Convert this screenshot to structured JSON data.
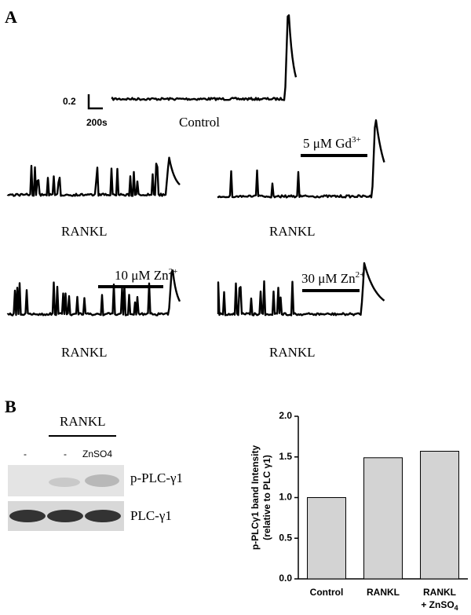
{
  "panel_a": {
    "label": "A",
    "scale_bar": {
      "amplitude": "0.2",
      "time": "200s"
    },
    "control_label": "Control",
    "trace_labels": [
      "RANKL",
      "RANKL",
      "RANKL",
      "RANKL"
    ],
    "treatments": [
      {
        "text": "5 μM Gd",
        "sup": "3+"
      },
      {
        "text": "10 μM Zn",
        "sup": "2+"
      },
      {
        "text": "30 μM Zn",
        "sup": "2+"
      }
    ]
  },
  "panel_b": {
    "label": "B",
    "blot": {
      "group_label": "RANKL",
      "lanes": [
        "-",
        "-",
        "ZnSO4"
      ],
      "rows": [
        "p-PLC-γ1",
        "PLC-γ1"
      ]
    }
  },
  "chart_data": {
    "type": "bar",
    "ylabel": [
      "p-PLCγ1 band Intensity",
      "(relative to PLC γ1)"
    ],
    "categories": [
      "Control",
      "RANKL",
      {
        "line1": "RANKL",
        "line2": "+ ZnSO",
        "sub": "4"
      }
    ],
    "values": [
      1.0,
      1.49,
      1.57
    ],
    "color": "#d3d3d3",
    "ylim": [
      0,
      2
    ],
    "yticks": [
      {
        "value": 0,
        "label": "0.0"
      },
      0.5,
      {
        "value": 1,
        "label": "1.0"
      },
      1.5,
      {
        "value": 2,
        "label": "2.0"
      }
    ]
  }
}
